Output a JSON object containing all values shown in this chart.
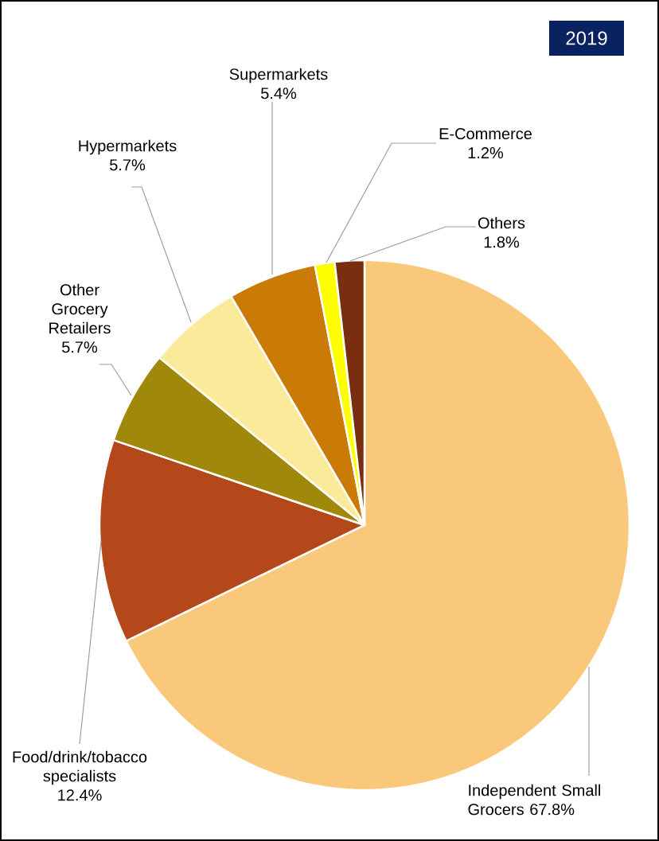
{
  "chart_data": {
    "type": "pie",
    "title": "2019",
    "categories": [
      "Independent Small Grocers",
      "Food/drink/tobacco specialists",
      "Other Grocery Retailers",
      "Hypermarkets",
      "Supermarkets",
      "E-Commerce",
      "Others"
    ],
    "values": [
      67.8,
      12.4,
      5.7,
      5.7,
      5.4,
      1.2,
      1.8
    ],
    "colors": [
      "#f9c87a",
      "#b5481a",
      "#a0890a",
      "#faea9a",
      "#c97b06",
      "#ffff00",
      "#7a2e10"
    ],
    "value_labels": [
      "67.8%",
      "12.4%",
      "5.7%",
      "5.7%",
      "5.4%",
      "1.2%",
      "1.8%"
    ]
  }
}
